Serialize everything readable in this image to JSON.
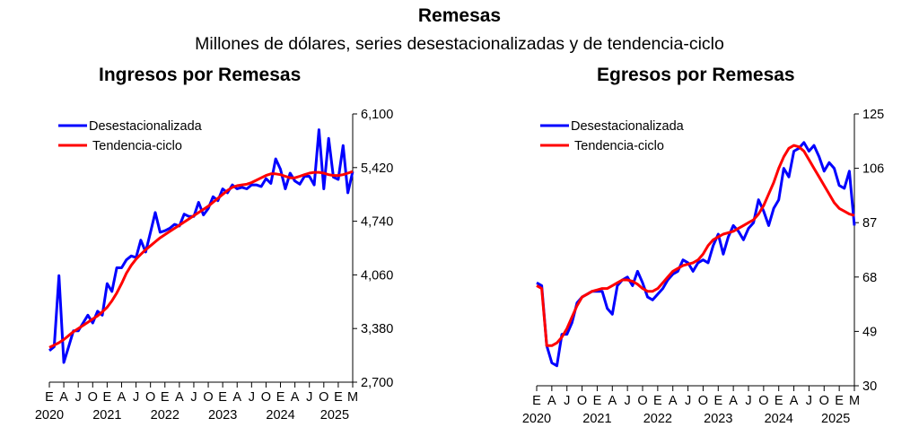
{
  "header": {
    "title": "Remesas",
    "subtitle": "Millones de dólares, series desestacionalizadas y de tendencia-ciclo"
  },
  "colors": {
    "series_sa": "#0000ff",
    "series_trend": "#ff0000"
  },
  "chart_data": [
    {
      "type": "line",
      "title": "Ingresos por Remesas",
      "xlabel": "",
      "ylabel": "",
      "ylim": [
        2700,
        6100
      ],
      "yticks": [
        "6,100",
        "5,420",
        "4,740",
        "4,060",
        "3,380",
        "2,700"
      ],
      "ytick_values": [
        6100,
        5420,
        4740,
        4060,
        3380,
        2700
      ],
      "x_start": "2020-01",
      "frequency": "monthly",
      "month_tick_labels": [
        "E",
        "A",
        "J",
        "O",
        "E",
        "A",
        "J",
        "O",
        "E",
        "A",
        "J",
        "O",
        "E",
        "A",
        "J",
        "O",
        "E",
        "A",
        "J",
        "O",
        "E",
        "M"
      ],
      "year_labels": [
        "2020",
        "2021",
        "2022",
        "2023",
        "2024",
        "2025"
      ],
      "legend": {
        "placement": "top-left",
        "entries": [
          "Desestacionalizada",
          "Tendencia-ciclo"
        ]
      },
      "series": [
        {
          "name": "Desestacionalizada",
          "values": [
            3100,
            3150,
            4050,
            2950,
            3150,
            3350,
            3350,
            3450,
            3550,
            3450,
            3600,
            3550,
            3950,
            3850,
            4150,
            4150,
            4250,
            4300,
            4280,
            4500,
            4350,
            4600,
            4850,
            4600,
            4620,
            4650,
            4700,
            4680,
            4830,
            4800,
            4800,
            4980,
            4820,
            4900,
            5050,
            5000,
            5150,
            5100,
            5200,
            5150,
            5170,
            5150,
            5200,
            5200,
            5180,
            5280,
            5220,
            5530,
            5400,
            5150,
            5350,
            5250,
            5210,
            5310,
            5310,
            5200,
            5900,
            5150,
            5790,
            5300,
            5270,
            5700,
            5100,
            5370
          ]
        },
        {
          "name": "Tendencia-ciclo",
          "values": [
            3140,
            3170,
            3200,
            3240,
            3290,
            3340,
            3380,
            3420,
            3460,
            3500,
            3540,
            3590,
            3650,
            3730,
            3830,
            3950,
            4080,
            4180,
            4260,
            4320,
            4380,
            4430,
            4480,
            4530,
            4570,
            4610,
            4650,
            4690,
            4730,
            4770,
            4810,
            4850,
            4890,
            4930,
            4980,
            5030,
            5080,
            5130,
            5170,
            5190,
            5200,
            5210,
            5230,
            5260,
            5290,
            5320,
            5340,
            5340,
            5330,
            5310,
            5290,
            5290,
            5310,
            5330,
            5350,
            5360,
            5360,
            5350,
            5330,
            5320,
            5320,
            5330,
            5350,
            5370
          ]
        }
      ]
    },
    {
      "type": "line",
      "title": "Egresos por Remesas",
      "xlabel": "",
      "ylabel": "",
      "ylim": [
        30,
        125
      ],
      "yticks": [
        "125",
        "106",
        "87",
        "68",
        "49",
        "30"
      ],
      "ytick_values": [
        125,
        106,
        87,
        68,
        49,
        30
      ],
      "x_start": "2020-01",
      "frequency": "monthly",
      "month_tick_labels": [
        "E",
        "A",
        "J",
        "O",
        "E",
        "A",
        "J",
        "O",
        "E",
        "A",
        "J",
        "O",
        "E",
        "A",
        "J",
        "O",
        "E",
        "A",
        "J",
        "O",
        "E",
        "M"
      ],
      "year_labels": [
        "2020",
        "2021",
        "2022",
        "2023",
        "2024",
        "2025"
      ],
      "legend": {
        "placement": "top-left",
        "entries": [
          "Desestacionalizada",
          "Tendencia-ciclo"
        ]
      },
      "series": [
        {
          "name": "Desestacionalizada",
          "values": [
            66,
            65,
            44,
            38,
            37,
            48,
            48,
            52,
            59,
            61,
            62,
            63,
            63,
            63,
            57,
            55,
            65,
            67,
            68,
            65,
            70,
            66,
            61,
            60,
            62,
            64,
            67,
            69,
            70,
            74,
            73,
            70,
            73,
            74,
            73,
            79,
            83,
            76,
            82,
            86,
            84,
            81,
            85,
            87,
            95,
            91,
            86,
            92,
            95,
            106,
            103,
            112,
            113,
            115,
            112,
            114,
            110,
            105,
            108,
            106,
            100,
            99,
            105,
            86
          ]
        },
        {
          "name": "Tendencia-ciclo",
          "values": [
            65,
            64,
            44,
            44,
            45,
            47,
            50,
            54,
            58,
            61,
            62,
            63,
            63.5,
            64,
            64,
            65,
            66,
            67,
            67,
            66.5,
            65.5,
            64,
            63,
            63,
            64,
            66,
            68,
            70,
            71,
            72,
            72.5,
            73,
            74,
            76,
            79,
            81,
            82,
            83,
            83.5,
            84,
            85,
            86,
            87,
            88,
            90,
            93,
            97,
            101,
            106,
            110,
            113,
            114,
            113.5,
            112,
            109,
            106,
            103,
            100,
            97,
            94,
            92,
            91,
            90,
            89.5
          ]
        }
      ]
    }
  ]
}
